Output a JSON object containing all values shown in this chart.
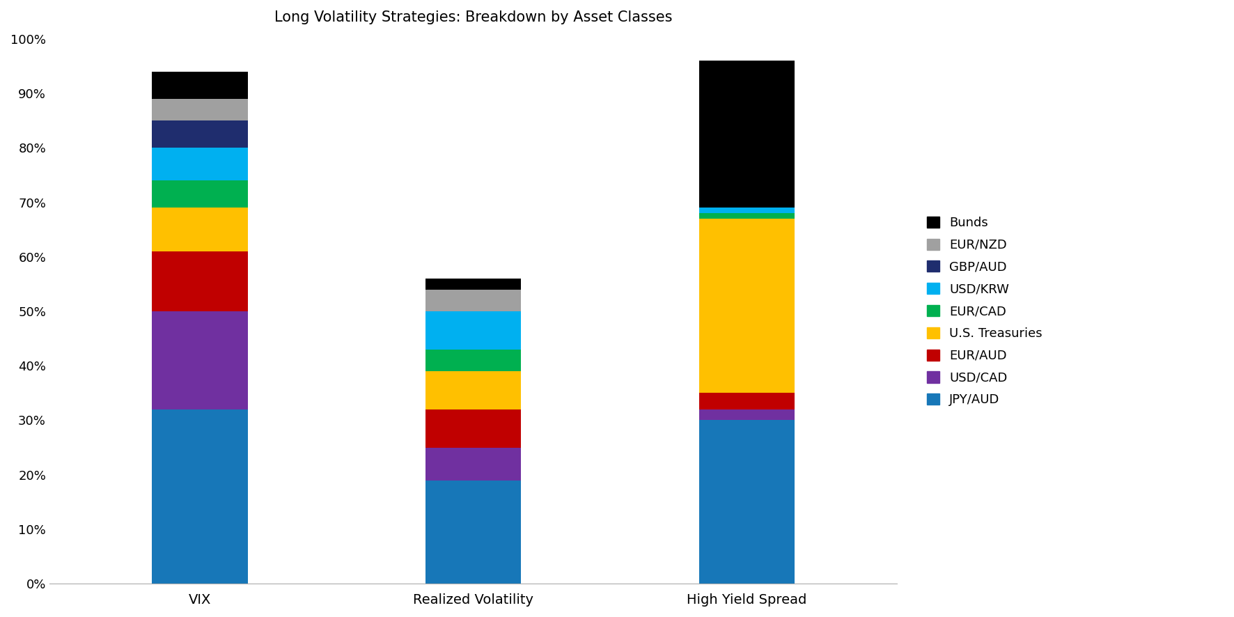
{
  "title": "Long Volatility Strategies: Breakdown by Asset Classes",
  "categories": [
    "VIX",
    "Realized Volatility",
    "High Yield Spread"
  ],
  "series": [
    {
      "label": "JPY/AUD",
      "color": "#1777b8",
      "values": [
        32,
        19,
        30
      ]
    },
    {
      "label": "USD/CAD",
      "color": "#7030a0",
      "values": [
        18,
        6,
        2
      ]
    },
    {
      "label": "EUR/AUD",
      "color": "#c00000",
      "values": [
        11,
        7,
        3
      ]
    },
    {
      "label": "U.S. Treasuries",
      "color": "#ffc000",
      "values": [
        8,
        7,
        32
      ]
    },
    {
      "label": "EUR/CAD",
      "color": "#00b050",
      "values": [
        5,
        4,
        1
      ]
    },
    {
      "label": "USD/KRW",
      "color": "#00b0f0",
      "values": [
        6,
        7,
        1
      ]
    },
    {
      "label": "GBP/AUD",
      "color": "#1f2d6e",
      "values": [
        5,
        0,
        0
      ]
    },
    {
      "label": "EUR/NZD",
      "color": "#a0a0a0",
      "values": [
        4,
        4,
        0
      ]
    },
    {
      "label": "Bunds",
      "color": "#000000",
      "values": [
        5,
        2,
        27
      ]
    }
  ],
  "ylim": [
    0,
    100
  ],
  "yticks": [
    0,
    10,
    20,
    30,
    40,
    50,
    60,
    70,
    80,
    90,
    100
  ],
  "yticklabels": [
    "0%",
    "10%",
    "20%",
    "30%",
    "40%",
    "50%",
    "60%",
    "70%",
    "80%",
    "90%",
    "100%"
  ],
  "background_color": "#ffffff",
  "bar_width": 0.35,
  "title_fontsize": 15,
  "x_positions": [
    0,
    1,
    2
  ],
  "xlim_left": -0.55,
  "xlim_right": 2.55
}
